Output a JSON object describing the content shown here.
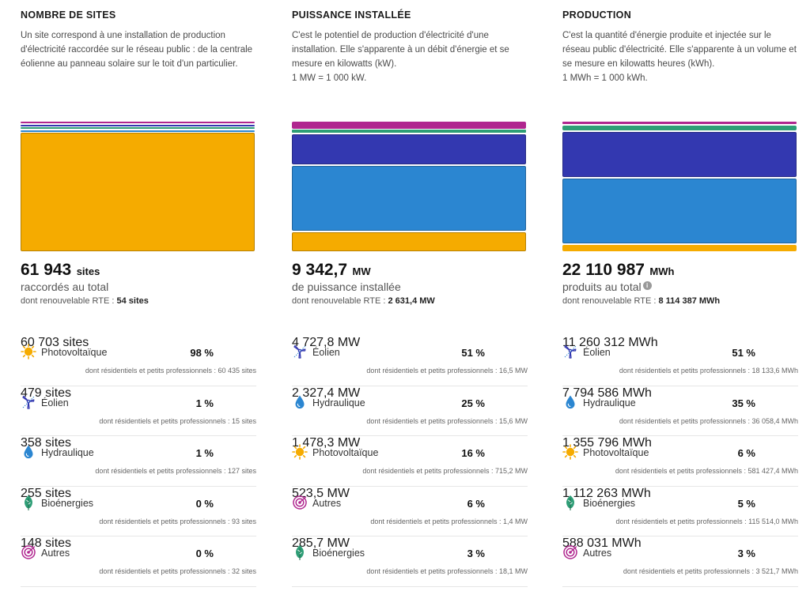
{
  "colors": {
    "solar": "#f5ab00",
    "wind_light": "#2b86d1",
    "hydro_dark": "#3338b0",
    "bio": "#2e9e76",
    "other": "#b0268f",
    "ice": "#cfe7ee"
  },
  "columns": [
    {
      "title": "NOMBRE DE SITES",
      "desc_lines": [
        "Un site correspond à une installation de production d'électricité raccordée sur le réseau public : de la centrale éolienne au panneau solaire sur le toit d'un particulier."
      ],
      "total_value": "61 943",
      "total_unit": "sites",
      "subtitle": "raccordés au total",
      "renew_label": "dont renouvelable RTE : ",
      "renew_value": "54 sites",
      "stack": [
        {
          "key": "other",
          "fraction": 0.02
        },
        {
          "key": "hydro",
          "fraction": 0.01
        },
        {
          "key": "bio",
          "fraction": 0.01
        },
        {
          "key": "wind",
          "fraction": 0.01
        },
        {
          "key": "solar",
          "fraction": 0.98
        }
      ],
      "rows": [
        {
          "icon": "sun-icon",
          "name": "Photovoltaïque",
          "pct": "98 %",
          "value": "60 703 sites",
          "note": "dont résidentiels et petits professionnels : 60 435 sites"
        },
        {
          "icon": "wind-turbine-icon",
          "name": "Éolien",
          "pct": "1 %",
          "value": "479 sites",
          "note": "dont résidentiels et petits professionnels : 15 sites"
        },
        {
          "icon": "water-drop-icon",
          "name": "Hydraulique",
          "pct": "1 %",
          "value": "358 sites",
          "note": "dont résidentiels et petits professionnels : 127 sites"
        },
        {
          "icon": "leaf-icon",
          "name": "Bioénergies",
          "pct": "0 %",
          "value": "255 sites",
          "note": "dont résidentiels et petits professionnels : 93 sites"
        },
        {
          "icon": "target-icon",
          "name": "Autres",
          "pct": "0 %",
          "value": "148 sites",
          "note": "dont résidentiels et petits professionnels : 32 sites"
        }
      ]
    },
    {
      "title": "PUISSANCE INSTALLÉE",
      "desc_lines": [
        "C'est le potentiel de production d'électricité d'une installation. Elle s'apparente à un débit d'énergie et se mesure en kilowatts (kW).",
        "1 MW = 1 000 kW."
      ],
      "total_value": "9 342,7",
      "total_unit": "MW",
      "subtitle": "de puissance installée",
      "renew_label": "dont renouvelable RTE : ",
      "renew_value": "2 631,4 MW",
      "stack": [
        {
          "key": "other",
          "fraction": 0.06
        },
        {
          "key": "bio",
          "fraction": 0.03
        },
        {
          "key": "hydro",
          "fraction": 0.25
        },
        {
          "key": "wind",
          "fraction": 0.51
        },
        {
          "key": "solar",
          "fraction": 0.16
        }
      ],
      "rows": [
        {
          "icon": "wind-turbine-icon",
          "name": "Éolien",
          "pct": "51 %",
          "value": "4 727,8 MW",
          "note": "dont résidentiels et petits professionnels : 16,5 MW"
        },
        {
          "icon": "water-drop-icon",
          "name": "Hydraulique",
          "pct": "25 %",
          "value": "2 327,4 MW",
          "note": "dont résidentiels et petits professionnels : 15,6 MW"
        },
        {
          "icon": "sun-icon",
          "name": "Photovoltaïque",
          "pct": "16 %",
          "value": "1 478,3 MW",
          "note": "dont résidentiels et petits professionnels : 715,2 MW"
        },
        {
          "icon": "target-icon",
          "name": "Autres",
          "pct": "6 %",
          "value": "523,5 MW",
          "note": "dont résidentiels et petits professionnels : 1,4 MW"
        },
        {
          "icon": "leaf-icon",
          "name": "Bioénergies",
          "pct": "3 %",
          "value": "285,7 MW",
          "note": "dont résidentiels et petits professionnels : 18,1 MW"
        }
      ]
    },
    {
      "title": "PRODUCTION",
      "desc_lines": [
        "C'est la quantité d'énergie produite et injectée sur le réseau public d'électricité. Elle s'apparente à un volume et se mesure en kilowatts heures (kWh).",
        "1 MWh = 1 000 kWh."
      ],
      "total_value": "22 110 987",
      "total_unit": "MWh",
      "subtitle": "produits au total",
      "renew_label": "dont renouvelable RTE : ",
      "renew_value": "8 114 387 MWh",
      "stack": [
        {
          "key": "other",
          "fraction": 0.03
        },
        {
          "key": "bio",
          "fraction": 0.05
        },
        {
          "key": "hydro",
          "fraction": 0.35
        },
        {
          "key": "wind",
          "fraction": 0.51
        },
        {
          "key": "solar",
          "fraction": 0.06
        }
      ],
      "rows": [
        {
          "icon": "wind-turbine-icon",
          "name": "Éolien",
          "pct": "51 %",
          "value": "11 260 312 MWh",
          "note": "dont résidentiels et petits professionnels : 18 133,6 MWh"
        },
        {
          "icon": "water-drop-icon",
          "name": "Hydraulique",
          "pct": "35 %",
          "value": "7 794 586 MWh",
          "note": "dont résidentiels et petits professionnels : 36 058,4 MWh"
        },
        {
          "icon": "sun-icon",
          "name": "Photovoltaïque",
          "pct": "6 %",
          "value": "1 355 796 MWh",
          "note": "dont résidentiels et petits professionnels : 581 427,4 MWh"
        },
        {
          "icon": "leaf-icon",
          "name": "Bioénergies",
          "pct": "5 %",
          "value": "1 112 263 MWh",
          "note": "dont résidentiels et petits professionnels : 115 514,0 MWh"
        },
        {
          "icon": "target-icon",
          "name": "Autres",
          "pct": "3 %",
          "value": "588 031 MWh",
          "note": "dont résidentiels et petits professionnels : 3 521,7 MWh"
        }
      ]
    }
  ]
}
